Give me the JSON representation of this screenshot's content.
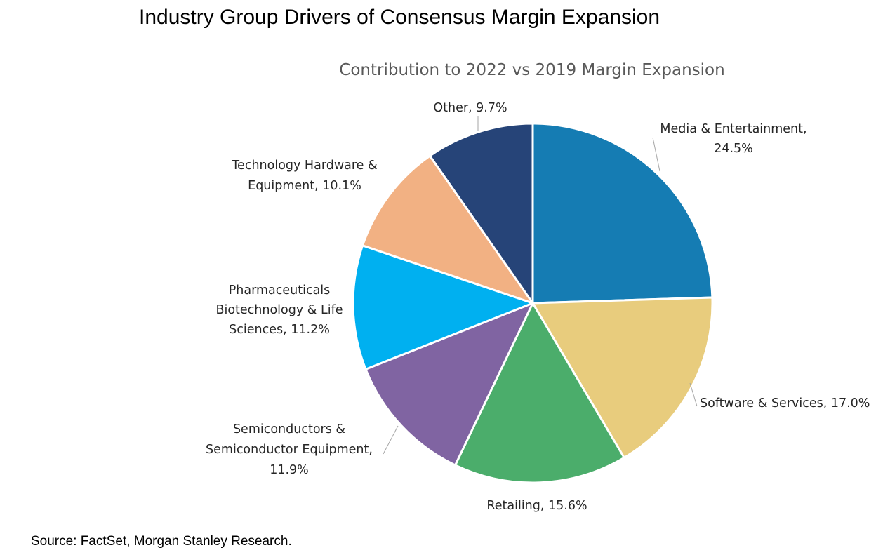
{
  "page": {
    "title": "Industry Group Drivers of Consensus Margin Expansion",
    "source": "Source: FactSet, Morgan Stanley Research."
  },
  "chart_data": {
    "type": "pie",
    "title": "Contribution to 2022 vs 2019 Margin Expansion",
    "slices": [
      {
        "label": "Media & Entertainment",
        "value": 24.5,
        "color": "#157CB3",
        "label_lines": [
          "Media & Entertainment,",
          "24.5%"
        ]
      },
      {
        "label": "Software & Services",
        "value": 17.0,
        "color": "#E8CC7D",
        "label_lines": [
          "Software & Services, 17.0%"
        ]
      },
      {
        "label": "Retailing",
        "value": 15.6,
        "color": "#4BAD6B",
        "label_lines": [
          "Retailing, 15.6%"
        ]
      },
      {
        "label": "Semiconductors & Semiconductor Equipment",
        "value": 11.9,
        "color": "#8064A2",
        "label_lines": [
          "Semiconductors &",
          "Semiconductor Equipment,",
          "11.9%"
        ]
      },
      {
        "label": "Pharmaceuticals Biotechnology & Life Sciences",
        "value": 11.2,
        "color": "#00B0F0",
        "label_lines": [
          "Pharmaceuticals",
          "Biotechnology & Life",
          "Sciences, 11.2%"
        ]
      },
      {
        "label": "Technology Hardware & Equipment",
        "value": 10.1,
        "color": "#F2B183",
        "label_lines": [
          "Technology Hardware &",
          "Equipment, 10.1%"
        ]
      },
      {
        "label": "Other",
        "value": 9.7,
        "color": "#264478",
        "label_lines": [
          "Other, 9.7%"
        ]
      }
    ]
  }
}
